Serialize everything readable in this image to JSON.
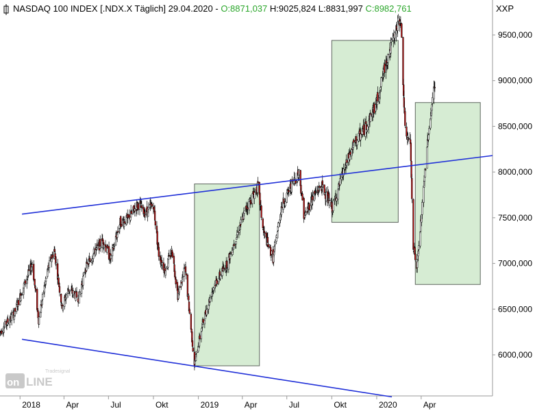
{
  "chart_data": {
    "type": "candlestick",
    "title": "NASDAQ 100 INDEX [.NDX.X",
    "interval": "Täglich]",
    "date": "29.04.2020",
    "ohlc": {
      "open": {
        "label": "O:",
        "value": "8871,037"
      },
      "high": {
        "label": "H:",
        "value": "9025,824"
      },
      "low": {
        "label": "L:",
        "value": "8831,997"
      },
      "close": {
        "label": "C:",
        "value": "8982,761"
      }
    },
    "axis_unit_label": "XXP",
    "y_ticks": [
      "6000,000",
      "6500,000",
      "7000,000",
      "7500,000",
      "8000,000",
      "8500,000",
      "9000,000",
      "9500,000"
    ],
    "y_tick_values": [
      6000,
      6500,
      7000,
      7500,
      8000,
      8500,
      9000,
      9500
    ],
    "ylim": [
      5560,
      9850
    ],
    "x_ticks": [
      {
        "label": "2018",
        "date": "2018-01-01"
      },
      {
        "label": "Apr",
        "date": "2018-04-01"
      },
      {
        "label": "Jul",
        "date": "2018-07-01"
      },
      {
        "label": "Okt",
        "date": "2018-10-01"
      },
      {
        "label": "2019",
        "date": "2019-01-01"
      },
      {
        "label": "Apr",
        "date": "2019-04-01"
      },
      {
        "label": "Jul",
        "date": "2019-07-01"
      },
      {
        "label": "Okt",
        "date": "2019-10-01"
      },
      {
        "label": "2020",
        "date": "2020-01-01"
      },
      {
        "label": "Apr",
        "date": "2020-04-01"
      }
    ],
    "xlim": [
      "2017-11-21",
      "2020-08-25"
    ],
    "price_path": [
      [
        "2017-11-21",
        6250
      ],
      [
        "2017-12-05",
        6350
      ],
      [
        "2017-12-20",
        6450
      ],
      [
        "2018-01-05",
        6700
      ],
      [
        "2018-01-26",
        7000
      ],
      [
        "2018-02-08",
        6380
      ],
      [
        "2018-02-26",
        6920
      ],
      [
        "2018-03-12",
        7150
      ],
      [
        "2018-03-28",
        6520
      ],
      [
        "2018-04-10",
        6720
      ],
      [
        "2018-05-01",
        6620
      ],
      [
        "2018-05-15",
        6950
      ],
      [
        "2018-06-05",
        7150
      ],
      [
        "2018-06-20",
        7250
      ],
      [
        "2018-07-05",
        7050
      ],
      [
        "2018-07-25",
        7450
      ],
      [
        "2018-08-10",
        7480
      ],
      [
        "2018-08-30",
        7650
      ],
      [
        "2018-09-15",
        7550
      ],
      [
        "2018-10-01",
        7650
      ],
      [
        "2018-10-12",
        7100
      ],
      [
        "2018-10-25",
        6920
      ],
      [
        "2018-11-08",
        7150
      ],
      [
        "2018-11-20",
        6650
      ],
      [
        "2018-12-05",
        6950
      ],
      [
        "2018-12-24",
        5900
      ],
      [
        "2019-01-10",
        6350
      ],
      [
        "2019-02-01",
        6750
      ],
      [
        "2019-03-01",
        7000
      ],
      [
        "2019-03-20",
        7300
      ],
      [
        "2019-04-10",
        7620
      ],
      [
        "2019-05-03",
        7840
      ],
      [
        "2019-05-14",
        7350
      ],
      [
        "2019-06-03",
        7050
      ],
      [
        "2019-06-20",
        7620
      ],
      [
        "2019-07-10",
        7850
      ],
      [
        "2019-07-26",
        8000
      ],
      [
        "2019-08-06",
        7500
      ],
      [
        "2019-08-22",
        7720
      ],
      [
        "2019-09-10",
        7850
      ],
      [
        "2019-10-02",
        7600
      ],
      [
        "2019-10-25",
        8000
      ],
      [
        "2019-11-15",
        8300
      ],
      [
        "2019-12-10",
        8500
      ],
      [
        "2019-12-31",
        8750
      ],
      [
        "2020-01-20",
        9200
      ],
      [
        "2020-02-19",
        9700
      ],
      [
        "2020-02-28",
        8450
      ],
      [
        "2020-03-10",
        8300
      ],
      [
        "2020-03-16",
        7200
      ],
      [
        "2020-03-23",
        6950
      ],
      [
        "2020-04-02",
        7550
      ],
      [
        "2020-04-15",
        8400
      ],
      [
        "2020-04-29",
        8980
      ]
    ],
    "boxes": [
      {
        "from": "2018-12-24",
        "to": "2019-05-06",
        "low": 5880,
        "high": 7870
      },
      {
        "from": "2019-10-01",
        "to": "2020-02-14",
        "low": 7450,
        "high": 9440
      },
      {
        "from": "2020-03-20",
        "to": "2020-07-31",
        "low": 6770,
        "high": 8760
      }
    ],
    "trendlines": [
      {
        "from": [
          "2018-01-05",
          7540
        ],
        "to": [
          "2020-08-25",
          8180
        ]
      },
      {
        "from": [
          "2018-01-05",
          6170
        ],
        "to": [
          "2020-02-01",
          5540
        ]
      }
    ],
    "colors": {
      "ohlc_green": "#2aa62a",
      "bear_candle": "#c01818",
      "bull_candle": "#ffffff",
      "trendline": "#1f2fd8",
      "box_fill": "#d6ecd3",
      "box_stroke": "#5d655d",
      "axis": "#999999"
    },
    "grid": false
  },
  "watermark": {
    "brand": "Tradesignal",
    "logo": "onLine"
  }
}
